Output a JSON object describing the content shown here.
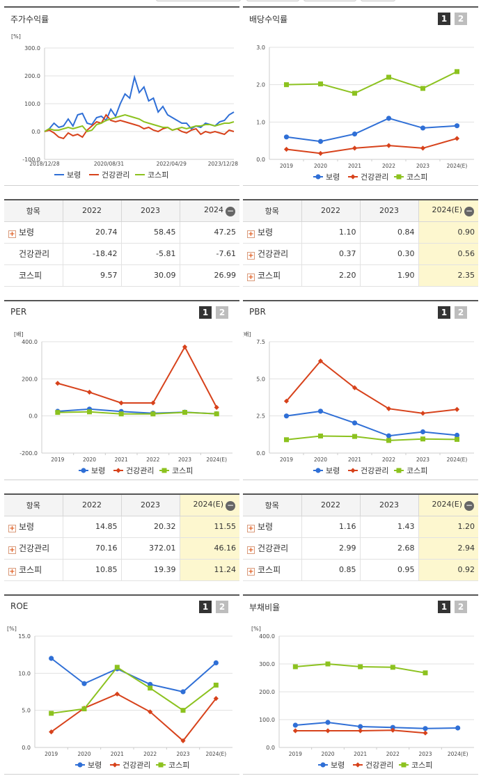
{
  "colors": {
    "boryung": "#2f6fd6",
    "health": "#d7421b",
    "kospi": "#8cc21f"
  },
  "legend": {
    "s1": "보령",
    "s2": "건강관리",
    "s3": "코스피"
  },
  "panels": {
    "stock": {
      "title": "주가수익률",
      "unit": "[%]",
      "chart_data": {
        "type": "line",
        "title": "주가수익률",
        "ylabel": "[%]",
        "ylim": [
          -100,
          300
        ],
        "yticks": [
          "300.0",
          "200.0",
          "100.0",
          "0.0",
          "-100.0"
        ],
        "xtick_labels": [
          "2018/12/28",
          "2020/08/31",
          "2022/04/29",
          "2023/12/28"
        ],
        "series": [
          {
            "name": "보령",
            "values": [
              0,
              10,
              30,
              15,
              20,
              45,
              20,
              60,
              65,
              30,
              25,
              50,
              55,
              40,
              80,
              55,
              100,
              135,
              120,
              195,
              140,
              160,
              110,
              120,
              70,
              90,
              60,
              50,
              40,
              30,
              30,
              10,
              20,
              15,
              30,
              25,
              20,
              35,
              40,
              60,
              70
            ]
          },
          {
            "name": "건강관리",
            "values": [
              0,
              5,
              -5,
              -20,
              -25,
              -5,
              -15,
              -10,
              -20,
              5,
              20,
              35,
              30,
              60,
              40,
              35,
              40,
              35,
              30,
              25,
              20,
              10,
              15,
              5,
              0,
              10,
              15,
              5,
              10,
              0,
              -5,
              5,
              10,
              -10,
              0,
              -5,
              0,
              -5,
              -10,
              5,
              0
            ]
          },
          {
            "name": "코스피",
            "values": [
              0,
              10,
              5,
              5,
              10,
              15,
              10,
              15,
              20,
              0,
              5,
              25,
              30,
              40,
              45,
              50,
              55,
              60,
              55,
              50,
              45,
              35,
              30,
              25,
              20,
              15,
              15,
              5,
              10,
              15,
              10,
              15,
              20,
              20,
              25,
              25,
              20,
              25,
              30,
              30,
              35
            ]
          }
        ]
      }
    },
    "dividend": {
      "title": "배당수익률",
      "btn1": "1",
      "btn2": "2",
      "chart_data": {
        "type": "line",
        "title": "배당수익률",
        "ylim": [
          0,
          3
        ],
        "yticks": [
          "3.0",
          "2.0",
          "1.0",
          "0.0"
        ],
        "categories": [
          "2019",
          "2020",
          "2021",
          "2022",
          "2023",
          "2024(E)"
        ],
        "series": [
          {
            "name": "보령",
            "values": [
              0.6,
              0.48,
              0.68,
              1.1,
              0.84,
              0.9
            ]
          },
          {
            "name": "건강관리",
            "values": [
              0.27,
              0.16,
              0.3,
              0.37,
              0.3,
              0.56
            ]
          },
          {
            "name": "코스피",
            "values": [
              2.0,
              2.02,
              1.77,
              2.2,
              1.9,
              2.35
            ]
          }
        ]
      }
    },
    "per": {
      "title": "PER",
      "btn1": "1",
      "btn2": "2",
      "unit": "[배]",
      "chart_data": {
        "type": "line",
        "title": "PER",
        "ylabel": "[배]",
        "ylim": [
          -200,
          400
        ],
        "yticks": [
          "400.0",
          "200.0",
          "0.0",
          "-200.0"
        ],
        "categories": [
          "2019",
          "2020",
          "2021",
          "2022",
          "2023",
          "2024(E)"
        ],
        "series": [
          {
            "name": "보령",
            "values": [
              25,
              37,
              24,
              14.85,
              20.32,
              11.55
            ]
          },
          {
            "name": "건강관리",
            "values": [
              176,
              128,
              70,
              70.16,
              372.01,
              46.16
            ]
          },
          {
            "name": "코스피",
            "values": [
              19,
              22,
              11,
              10.85,
              19.39,
              11.24
            ]
          }
        ]
      }
    },
    "pbr": {
      "title": "PBR",
      "btn1": "1",
      "btn2": "2",
      "unit": "[배]",
      "chart_data": {
        "type": "line",
        "title": "PBR",
        "ylabel": "[배]",
        "ylim": [
          0,
          7.5
        ],
        "yticks": [
          "7.5",
          "5.0",
          "2.5",
          "0.0"
        ],
        "categories": [
          "2019",
          "2020",
          "2021",
          "2022",
          "2023",
          "2024(E)"
        ],
        "series": [
          {
            "name": "보령",
            "values": [
              2.5,
              2.82,
              2.03,
              1.16,
              1.43,
              1.2
            ]
          },
          {
            "name": "건강관리",
            "values": [
              3.5,
              6.2,
              4.4,
              2.99,
              2.68,
              2.94
            ]
          },
          {
            "name": "코스피",
            "values": [
              0.9,
              1.15,
              1.12,
              0.85,
              0.95,
              0.92
            ]
          }
        ]
      }
    },
    "roe": {
      "title": "ROE",
      "btn1": "1",
      "btn2": "2",
      "unit": "[%]",
      "chart_data": {
        "type": "line",
        "title": "ROE",
        "ylabel": "[%]",
        "ylim": [
          0,
          15
        ],
        "yticks": [
          "15.0",
          "10.0",
          "5.0",
          "0.0"
        ],
        "categories": [
          "2019",
          "2020",
          "2021",
          "2022",
          "2023",
          "2024(E)"
        ],
        "series": [
          {
            "name": "보령",
            "values": [
              12.0,
              8.6,
              10.6,
              8.5,
              7.5,
              11.4
            ]
          },
          {
            "name": "건강관리",
            "values": [
              2.1,
              5.3,
              7.2,
              4.8,
              0.9,
              6.6
            ]
          },
          {
            "name": "코스피",
            "values": [
              4.6,
              5.2,
              10.8,
              8.0,
              5.0,
              8.4
            ]
          }
        ]
      }
    },
    "debt": {
      "title": "부채비율",
      "btn1": "1",
      "btn2": "2",
      "unit": "[%]",
      "chart_data": {
        "type": "line",
        "title": "부채비율",
        "ylabel": "[%]",
        "ylim": [
          0,
          400
        ],
        "yticks": [
          "400.0",
          "300.0",
          "200.0",
          "100.0",
          "0.0"
        ],
        "categories": [
          "2019",
          "2020",
          "2021",
          "2022",
          "2023",
          "2024(E)"
        ],
        "series": [
          {
            "name": "보령",
            "values": [
              80,
              90,
              75,
              72,
              68,
              70
            ]
          },
          {
            "name": "건강관리",
            "values": [
              60,
              60,
              60,
              62,
              52,
              null
            ]
          },
          {
            "name": "코스피",
            "values": [
              290,
              300,
              290,
              288,
              268,
              null
            ]
          }
        ]
      }
    }
  },
  "tables": {
    "stock": {
      "header": {
        "item": "항목",
        "c1": "2022",
        "c2": "2023",
        "c3": "2024"
      },
      "rows": [
        {
          "name": "보령",
          "v1": "20.74",
          "v2": "58.45",
          "v3": "47.25"
        },
        {
          "name": "건강관리",
          "v1": "-18.42",
          "v2": "-5.81",
          "v3": "-7.61"
        },
        {
          "name": "코스피",
          "v1": "9.57",
          "v2": "30.09",
          "v3": "26.99"
        }
      ]
    },
    "dividend": {
      "header": {
        "item": "항목",
        "c1": "2022",
        "c2": "2023",
        "c3": "2024(E)"
      },
      "rows": [
        {
          "name": "보령",
          "v1": "1.10",
          "v2": "0.84",
          "v3": "0.90"
        },
        {
          "name": "건강관리",
          "v1": "0.37",
          "v2": "0.30",
          "v3": "0.56"
        },
        {
          "name": "코스피",
          "v1": "2.20",
          "v2": "1.90",
          "v3": "2.35"
        }
      ]
    },
    "per": {
      "header": {
        "item": "항목",
        "c1": "2022",
        "c2": "2023",
        "c3": "2024(E)"
      },
      "rows": [
        {
          "name": "보령",
          "v1": "14.85",
          "v2": "20.32",
          "v3": "11.55"
        },
        {
          "name": "건강관리",
          "v1": "70.16",
          "v2": "372.01",
          "v3": "46.16"
        },
        {
          "name": "코스피",
          "v1": "10.85",
          "v2": "19.39",
          "v3": "11.24"
        }
      ]
    },
    "pbr": {
      "header": {
        "item": "항목",
        "c1": "2022",
        "c2": "2023",
        "c3": "2024(E)"
      },
      "rows": [
        {
          "name": "보령",
          "v1": "1.16",
          "v2": "1.43",
          "v3": "1.20"
        },
        {
          "name": "건강관리",
          "v1": "2.99",
          "v2": "2.68",
          "v3": "2.94"
        },
        {
          "name": "코스피",
          "v1": "0.85",
          "v2": "0.95",
          "v3": "0.92"
        }
      ]
    }
  }
}
